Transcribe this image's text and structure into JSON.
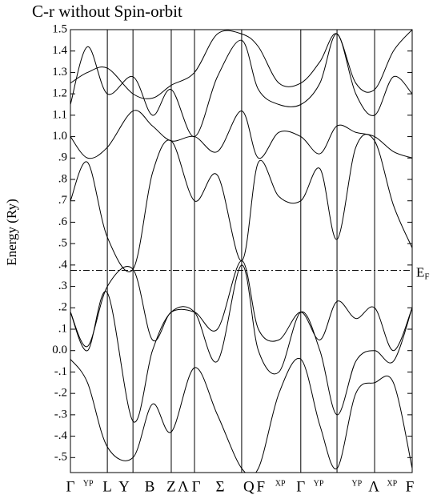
{
  "chart_data": {
    "type": "line",
    "title": "C-r without Spin-orbit",
    "y_label": "Energy (Ry)",
    "ylim": [
      -0.57,
      1.5
    ],
    "yticks": [
      {
        "value": 1.5,
        "label": "1.5"
      },
      {
        "value": 1.4,
        "label": "1.4"
      },
      {
        "value": 1.3,
        "label": "1.3"
      },
      {
        "value": 1.2,
        "label": "1.2"
      },
      {
        "value": 1.1,
        "label": "1.1"
      },
      {
        "value": 1.0,
        "label": "1.0"
      },
      {
        "value": 0.9,
        "label": ".9"
      },
      {
        "value": 0.8,
        "label": ".8"
      },
      {
        "value": 0.7,
        "label": ".7"
      },
      {
        "value": 0.6,
        "label": ".6"
      },
      {
        "value": 0.5,
        "label": ".5"
      },
      {
        "value": 0.4,
        "label": ".4"
      },
      {
        "value": 0.3,
        "label": ".3"
      },
      {
        "value": 0.2,
        "label": ".2"
      },
      {
        "value": 0.1,
        "label": ".1"
      },
      {
        "value": 0,
        "label": "0.0"
      },
      {
        "value": -0.1,
        "label": "-.1"
      },
      {
        "value": -0.2,
        "label": "-.2"
      },
      {
        "value": -0.3,
        "label": "-.3"
      },
      {
        "value": -0.4,
        "label": "-.4"
      },
      {
        "value": -0.5,
        "label": "-.5"
      }
    ],
    "xlim": [
      0,
      10
    ],
    "xticks": [
      {
        "value": 0,
        "label": "Γ"
      },
      {
        "value": 0.52,
        "label": "YP"
      },
      {
        "value": 1.08,
        "label": "L"
      },
      {
        "value": 1.57,
        "label": "Y"
      },
      {
        "value": 2.32,
        "label": "B"
      },
      {
        "value": 2.95,
        "label": "Z"
      },
      {
        "value": 3.3,
        "label": "Λ"
      },
      {
        "value": 3.68,
        "label": "Γ"
      },
      {
        "value": 4.38,
        "label": "Σ"
      },
      {
        "value": 5.22,
        "label": "Q"
      },
      {
        "value": 5.57,
        "label": "F"
      },
      {
        "value": 6.14,
        "label": "XP"
      },
      {
        "value": 6.74,
        "label": "Γ"
      },
      {
        "value": 7.26,
        "label": "YP"
      },
      {
        "value": 8.38,
        "label": "YP"
      },
      {
        "value": 8.88,
        "label": "Λ"
      },
      {
        "value": 9.41,
        "label": "XP"
      },
      {
        "value": 9.93,
        "label": "F"
      }
    ],
    "symmetry_lines": [
      0,
      1.08,
      1.83,
      2.95,
      3.63,
      5.01,
      6.74,
      7.8,
      8.9,
      10
    ],
    "fermi_level": 0.375,
    "fermi_label": "E",
    "fermi_subscript": "F",
    "color": "#000000",
    "x": [
      0,
      0.5,
      1.08,
      1.83,
      2.4,
      2.95,
      3.63,
      4.3,
      5.01,
      5.5,
      6.1,
      6.74,
      7.3,
      7.8,
      8.35,
      8.9,
      9.45,
      10
    ],
    "series": [
      {
        "values": [
          -0.04,
          -0.15,
          -0.45,
          -0.5,
          -0.25,
          -0.38,
          -0.08,
          -0.3,
          -0.55,
          -0.55,
          -0.2,
          -0.04,
          -0.35,
          -0.55,
          -0.2,
          -0.15,
          -0.15,
          -0.55
        ]
      },
      {
        "values": [
          0.18,
          0.0,
          0.27,
          -0.33,
          0.0,
          0.18,
          0.18,
          -0.05,
          0.4,
          0.0,
          -0.1,
          0.18,
          0.0,
          -0.3,
          -0.05,
          0.0,
          -0.05,
          0.2
        ]
      },
      {
        "values": [
          0.18,
          0.02,
          0.3,
          0.38,
          0.05,
          0.18,
          0.18,
          0.1,
          0.42,
          0.1,
          0.05,
          0.18,
          0.05,
          0.23,
          0.15,
          0.2,
          0.0,
          0.2
        ]
      },
      {
        "values": [
          0.7,
          0.88,
          0.53,
          0.38,
          0.83,
          0.98,
          0.7,
          0.82,
          0.42,
          0.88,
          0.72,
          0.7,
          0.85,
          0.52,
          0.95,
          0.98,
          0.68,
          0.48
        ]
      },
      {
        "values": [
          1.0,
          0.9,
          0.95,
          1.12,
          1.05,
          0.98,
          1.0,
          0.93,
          1.12,
          0.9,
          1.02,
          1.0,
          0.92,
          1.05,
          1.02,
          1.0,
          0.93,
          0.9
        ]
      },
      {
        "values": [
          1.15,
          1.42,
          1.2,
          1.28,
          1.1,
          1.22,
          1.0,
          1.28,
          1.45,
          1.22,
          1.15,
          1.15,
          1.25,
          1.48,
          1.2,
          1.1,
          1.28,
          1.2
        ]
      },
      {
        "values": [
          1.25,
          1.3,
          1.32,
          1.2,
          1.18,
          1.24,
          1.3,
          1.48,
          1.48,
          1.42,
          1.25,
          1.25,
          1.35,
          1.48,
          1.25,
          1.22,
          1.4,
          1.5
        ]
      }
    ]
  }
}
